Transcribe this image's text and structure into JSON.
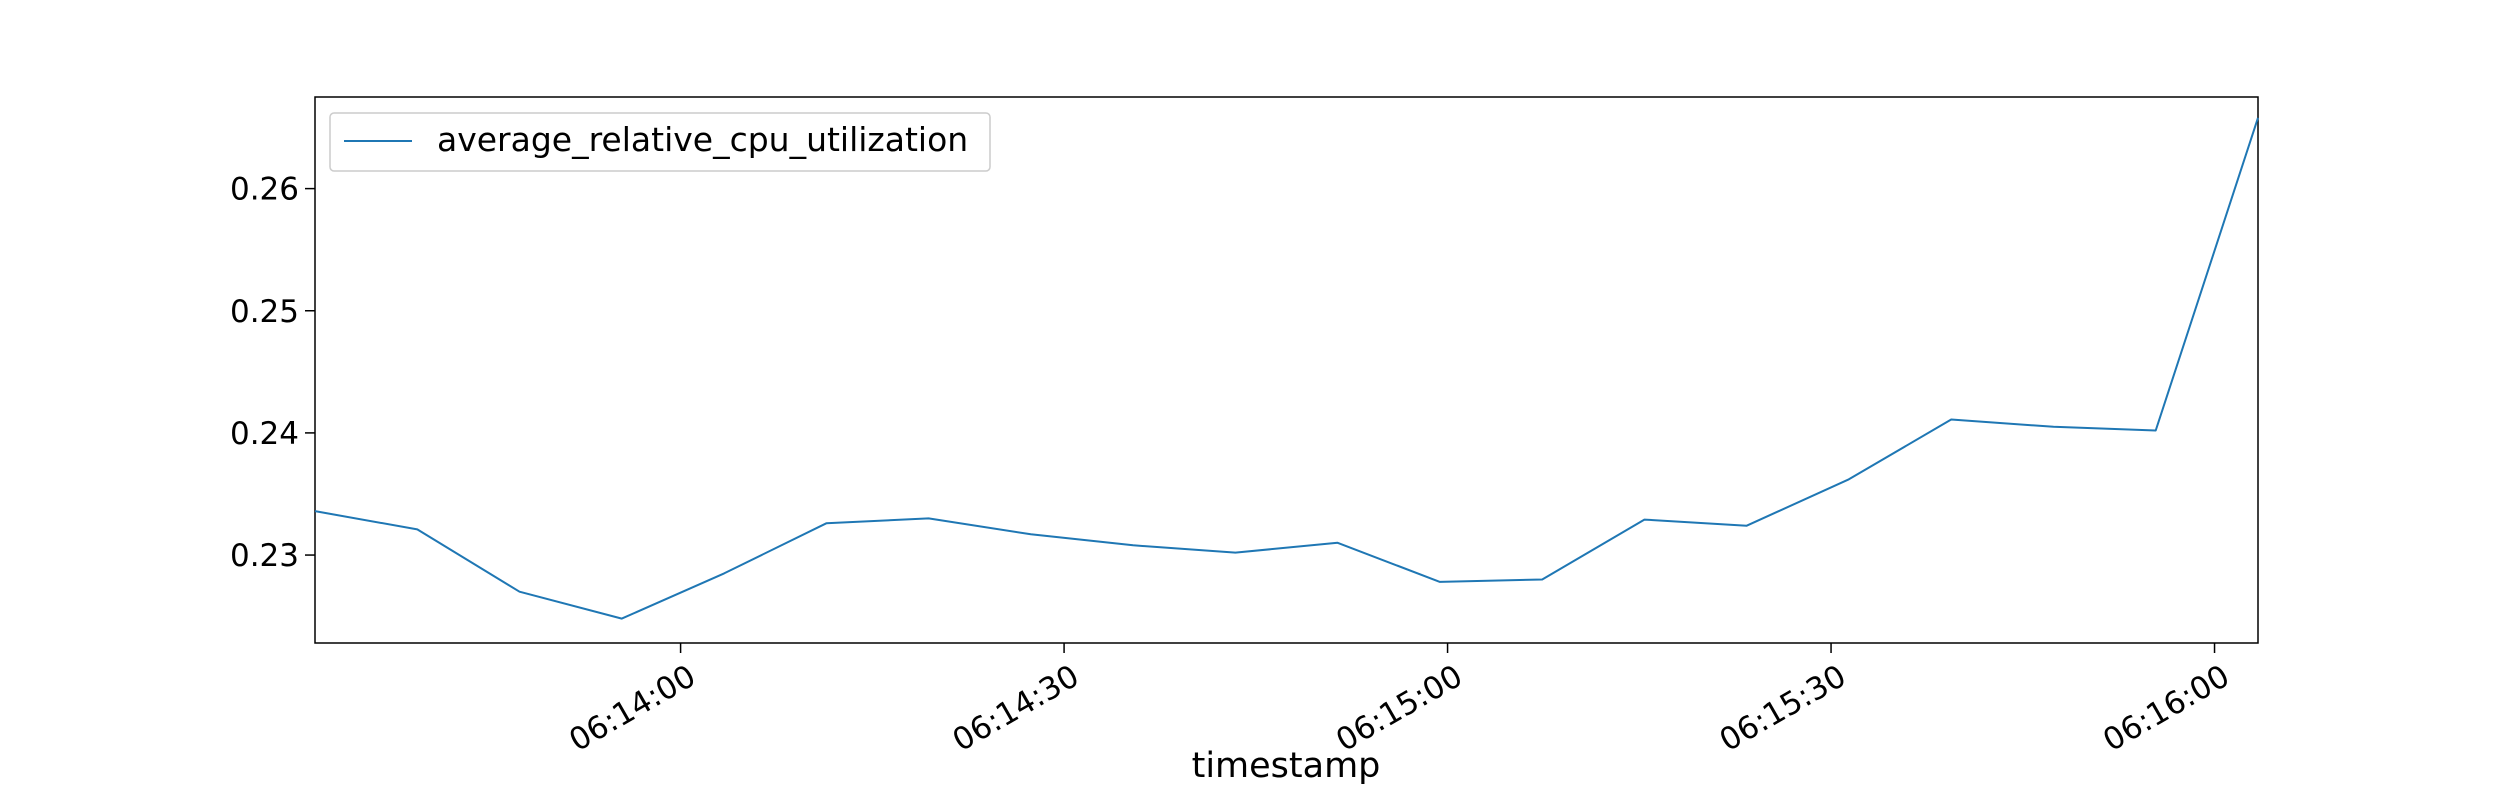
{
  "chart_data": {
    "type": "line",
    "title": "",
    "xlabel": "timestamp",
    "ylabel": "",
    "x": [
      "06:13:31.4",
      "06:13:39.4",
      "06:13:47.4",
      "06:13:55.4",
      "06:14:03.4",
      "06:14:11.4",
      "06:14:19.4",
      "06:14:27.4",
      "06:14:35.4",
      "06:14:43.4",
      "06:14:51.4",
      "06:14:59.4",
      "06:15:07.4",
      "06:15:15.4",
      "06:15:23.4",
      "06:15:31.4",
      "06:15:39.4",
      "06:15:47.4",
      "06:15:55.4",
      "06:16:03.4"
    ],
    "series": [
      {
        "name": "average_relative_cpu_utilization",
        "color": "#1f77b4",
        "values": [
          0.2336,
          0.2321,
          0.227,
          0.2248,
          0.2285,
          0.2326,
          0.233,
          0.2317,
          0.2308,
          0.2302,
          0.231,
          0.2278,
          0.228,
          0.2329,
          0.2324,
          0.2362,
          0.2411,
          0.2405,
          0.2402,
          0.2658
        ]
      }
    ],
    "xlim": [
      "06:13:31.4",
      "06:16:03.4"
    ],
    "ylim": [
      0.2228,
      0.2675
    ],
    "x_ticks": [
      "06:14:00",
      "06:14:30",
      "06:15:00",
      "06:15:30",
      "06:16:00"
    ],
    "y_ticks": [
      "0.23",
      "0.24",
      "0.25",
      "0.26"
    ],
    "legend_position": "upper-left",
    "grid": false
  }
}
